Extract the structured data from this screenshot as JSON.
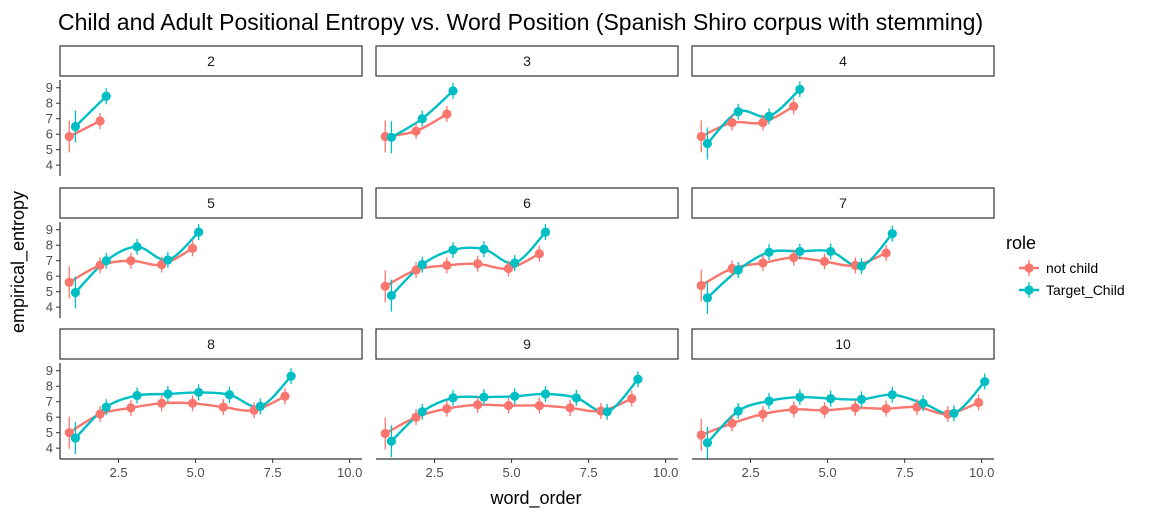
{
  "chart_data": {
    "type": "scatter",
    "title": "Child and Adult Positional Entropy vs. Word Position (Spanish Shiro corpus with stemming)",
    "xlabel": "word_order",
    "ylabel": "empirical_entropy",
    "xlim": [
      0.6,
      10.4
    ],
    "ylim": [
      3.3,
      9.5
    ],
    "x_ticks": [
      2.5,
      5.0,
      7.5,
      10.0
    ],
    "x_tick_labels": [
      "2.5",
      "5.0",
      "7.5",
      "10.0"
    ],
    "y_ticks": [
      4,
      5,
      6,
      7,
      8,
      9
    ],
    "y_tick_labels": [
      "4",
      "5",
      "6",
      "7",
      "8",
      "9"
    ],
    "grid": false,
    "legend": {
      "title": "role",
      "position": "right",
      "entries": [
        "not child",
        "Target_Child"
      ]
    },
    "series_colors": {
      "not child": "#F8766D",
      "Target_Child": "#00BFC4"
    },
    "panels": [
      {
        "label": "2",
        "not_child": [
          [
            1,
            5.85
          ],
          [
            2,
            6.85
          ]
        ],
        "target_child": [
          [
            1,
            6.5
          ],
          [
            2,
            8.45
          ]
        ]
      },
      {
        "label": "3",
        "not_child": [
          [
            1,
            5.85
          ],
          [
            2,
            6.2
          ],
          [
            3,
            7.3
          ]
        ],
        "target_child": [
          [
            1,
            5.8
          ],
          [
            2,
            7.0
          ],
          [
            3,
            8.8
          ]
        ]
      },
      {
        "label": "4",
        "not_child": [
          [
            1,
            5.85
          ],
          [
            2,
            6.75
          ],
          [
            3,
            6.75
          ],
          [
            4,
            7.8
          ]
        ],
        "target_child": [
          [
            1,
            5.4
          ],
          [
            2,
            7.45
          ],
          [
            3,
            7.15
          ],
          [
            4,
            8.9
          ]
        ]
      },
      {
        "label": "5",
        "not_child": [
          [
            1,
            5.6
          ],
          [
            2,
            6.7
          ],
          [
            3,
            7.0
          ],
          [
            4,
            6.75
          ],
          [
            5,
            7.8
          ]
        ],
        "target_child": [
          [
            1,
            4.95
          ],
          [
            2,
            7.0
          ],
          [
            3,
            7.9
          ],
          [
            4,
            7.05
          ],
          [
            5,
            8.85
          ]
        ]
      },
      {
        "label": "6",
        "not_child": [
          [
            1,
            5.35
          ],
          [
            2,
            6.4
          ],
          [
            3,
            6.7
          ],
          [
            4,
            6.8
          ],
          [
            5,
            6.5
          ],
          [
            6,
            7.45
          ]
        ],
        "target_child": [
          [
            1,
            4.75
          ],
          [
            2,
            6.75
          ],
          [
            3,
            7.7
          ],
          [
            4,
            7.75
          ],
          [
            5,
            6.85
          ],
          [
            6,
            8.85
          ]
        ]
      },
      {
        "label": "7",
        "not_child": [
          [
            1,
            5.4
          ],
          [
            2,
            6.5
          ],
          [
            3,
            6.85
          ],
          [
            4,
            7.2
          ],
          [
            5,
            6.95
          ],
          [
            6,
            6.7
          ],
          [
            7,
            7.5
          ]
        ],
        "target_child": [
          [
            1,
            4.6
          ],
          [
            2,
            6.4
          ],
          [
            3,
            7.55
          ],
          [
            4,
            7.6
          ],
          [
            5,
            7.6
          ],
          [
            6,
            6.65
          ],
          [
            7,
            8.75
          ]
        ]
      },
      {
        "label": "8",
        "not_child": [
          [
            1,
            5.0
          ],
          [
            2,
            6.2
          ],
          [
            3,
            6.6
          ],
          [
            4,
            6.9
          ],
          [
            5,
            6.9
          ],
          [
            6,
            6.65
          ],
          [
            7,
            6.45
          ],
          [
            8,
            7.35
          ]
        ],
        "target_child": [
          [
            1,
            4.65
          ],
          [
            2,
            6.65
          ],
          [
            3,
            7.4
          ],
          [
            4,
            7.5
          ],
          [
            5,
            7.6
          ],
          [
            6,
            7.45
          ],
          [
            7,
            6.7
          ],
          [
            8,
            8.65
          ]
        ]
      },
      {
        "label": "9",
        "not_child": [
          [
            1,
            4.95
          ],
          [
            2,
            6.0
          ],
          [
            3,
            6.55
          ],
          [
            4,
            6.8
          ],
          [
            5,
            6.75
          ],
          [
            6,
            6.75
          ],
          [
            7,
            6.6
          ],
          [
            8,
            6.4
          ],
          [
            9,
            7.2
          ]
        ],
        "target_child": [
          [
            1,
            4.45
          ],
          [
            2,
            6.35
          ],
          [
            3,
            7.25
          ],
          [
            4,
            7.3
          ],
          [
            5,
            7.35
          ],
          [
            6,
            7.5
          ],
          [
            7,
            7.25
          ],
          [
            8,
            6.35
          ],
          [
            9,
            8.45
          ]
        ]
      },
      {
        "label": "10",
        "not_child": [
          [
            1,
            4.85
          ],
          [
            2,
            5.6
          ],
          [
            3,
            6.2
          ],
          [
            4,
            6.5
          ],
          [
            5,
            6.45
          ],
          [
            6,
            6.6
          ],
          [
            7,
            6.55
          ],
          [
            8,
            6.65
          ],
          [
            9,
            6.2
          ],
          [
            10,
            6.95
          ]
        ],
        "target_child": [
          [
            1,
            4.35
          ],
          [
            2,
            6.4
          ],
          [
            3,
            7.05
          ],
          [
            4,
            7.3
          ],
          [
            5,
            7.2
          ],
          [
            6,
            7.15
          ],
          [
            7,
            7.45
          ],
          [
            8,
            6.9
          ],
          [
            9,
            6.25
          ],
          [
            10,
            8.3
          ]
        ]
      }
    ]
  }
}
